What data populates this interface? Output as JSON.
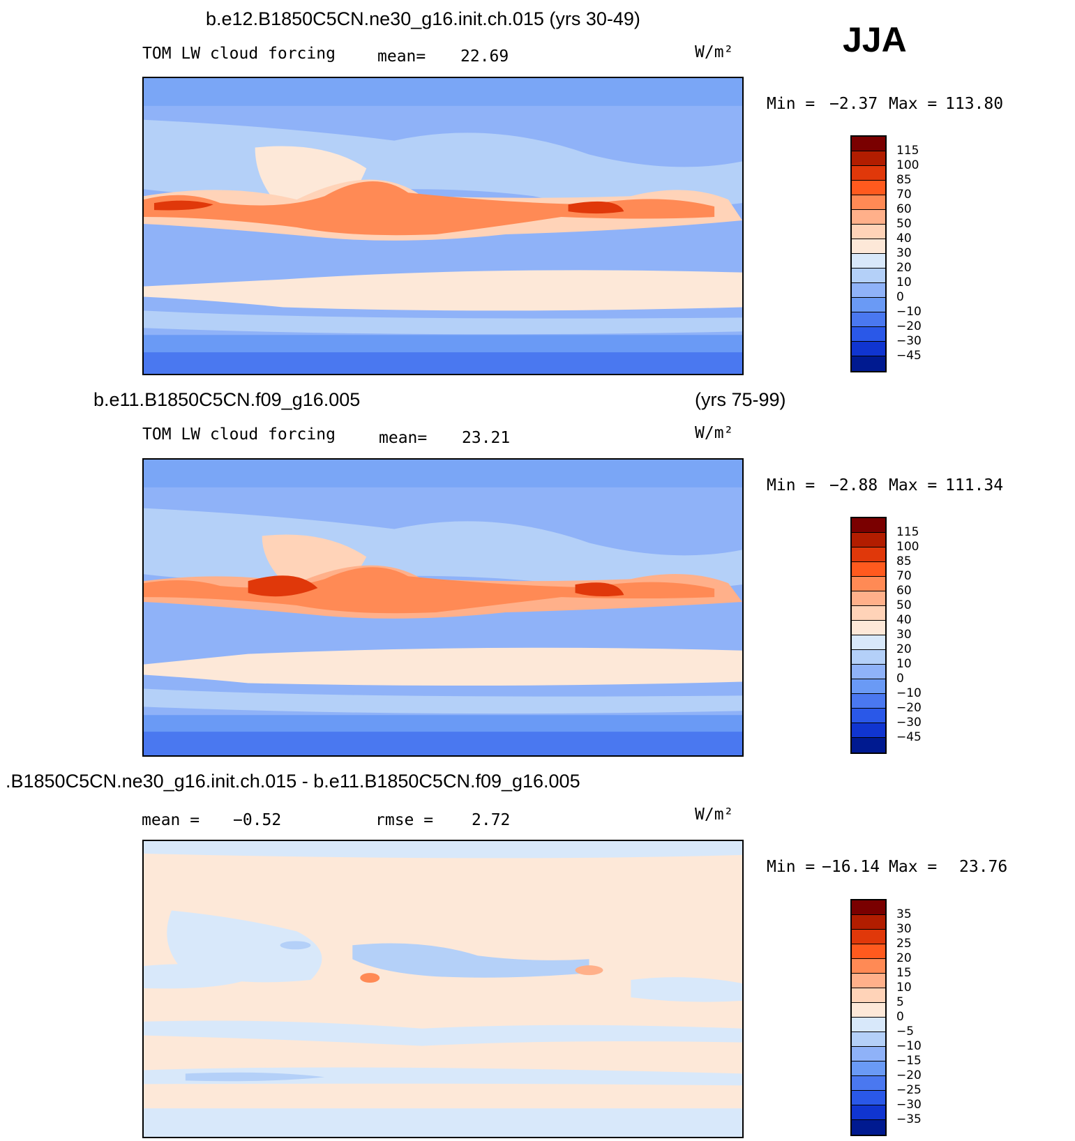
{
  "season": "JJA",
  "units": "W/m²",
  "palette_main": [
    "#7a0000",
    "#b21d00",
    "#e0380a",
    "#ff5a1e",
    "#ff8a55",
    "#ffb08a",
    "#ffd3b8",
    "#fde8d8",
    "#d8e8fa",
    "#b4d0f8",
    "#8fb2f8",
    "#6a9af5",
    "#4a78f0",
    "#2a58e8",
    "#1035d0",
    "#001a90"
  ],
  "palette_diff": [
    "#7a0000",
    "#b21d00",
    "#e0380a",
    "#ff5a1e",
    "#ff8a55",
    "#ffb08a",
    "#ffd3b8",
    "#fde8d8",
    "#d8e8fa",
    "#b4d0f8",
    "#8fb2f8",
    "#6a9af5",
    "#4a78f0",
    "#2a58e8",
    "#1035d0",
    "#001a90"
  ],
  "panels": [
    {
      "title": "b.e12.B1850C5CN.ne30_g16.init.ch.015 (yrs 30-49)",
      "years": "",
      "variable": "TOM LW cloud forcing",
      "mean_label": "mean=",
      "mean_value": "22.69",
      "rmse_label": "",
      "rmse_value": "",
      "units": "W/m²",
      "min_label": "Min =",
      "min_value": "−2.37",
      "max_label": "Max =",
      "max_value": "113.80",
      "levels": [
        "115",
        "100",
        "85",
        "70",
        "60",
        "50",
        "40",
        "30",
        "20",
        "10",
        "0",
        "−10",
        "−20",
        "−30",
        "−45"
      ]
    },
    {
      "title": "b.e11.B1850C5CN.f09_g16.005",
      "years": "(yrs 75-99)",
      "variable": "TOM LW cloud forcing",
      "mean_label": "mean=",
      "mean_value": "23.21",
      "rmse_label": "",
      "rmse_value": "",
      "units": "W/m²",
      "min_label": "Min =",
      "min_value": "−2.88",
      "max_label": "Max =",
      "max_value": "111.34",
      "levels": [
        "115",
        "100",
        "85",
        "70",
        "60",
        "50",
        "40",
        "30",
        "20",
        "10",
        "0",
        "−10",
        "−20",
        "−30",
        "−45"
      ]
    },
    {
      "title": ".B1850C5CN.ne30_g16.init.ch.015 - b.e11.B1850C5CN.f09_g16.005",
      "years": "",
      "variable": "",
      "mean_label": "mean =",
      "mean_value": "−0.52",
      "rmse_label": "rmse =",
      "rmse_value": "2.72",
      "units": "W/m²",
      "min_label": "Min =",
      "min_value": "−16.14",
      "max_label": "Max =",
      "max_value": "23.76",
      "levels": [
        "35",
        "30",
        "25",
        "20",
        "15",
        "10",
        "5",
        "0",
        "−5",
        "−10",
        "−15",
        "−20",
        "−25",
        "−30",
        "−35"
      ]
    }
  ]
}
